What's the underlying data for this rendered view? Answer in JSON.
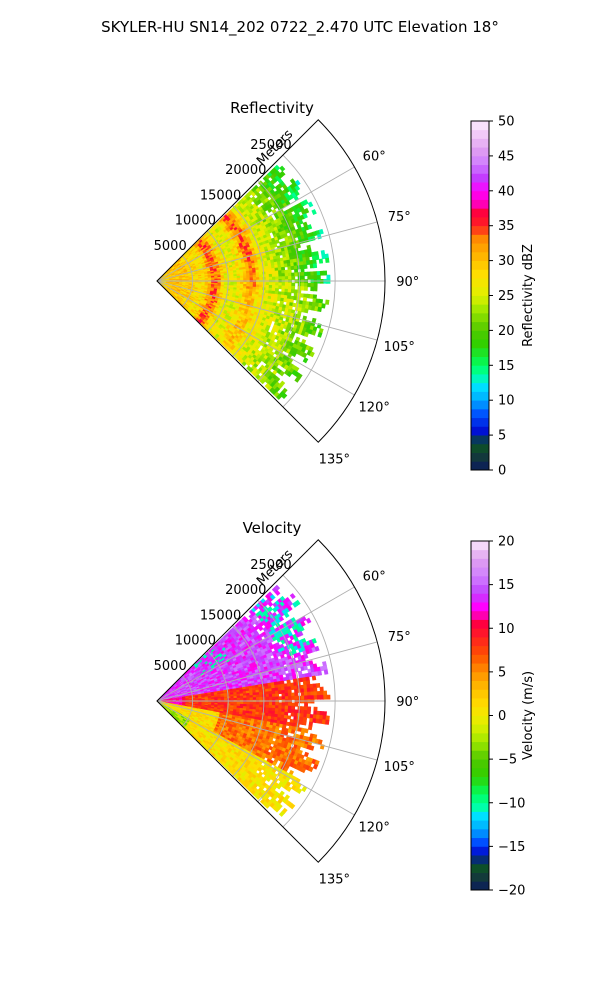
{
  "figure": {
    "title": "SKYLER-HU  SN14_202  0722_2.470 UTC Elevation 18°"
  },
  "chart_data": [
    {
      "type": "heatmap",
      "subtype": "polar-sector (radar PPI)",
      "title": "Reflectivity",
      "range_axis_label": "Meters",
      "range_ticks": [
        5000,
        10000,
        15000,
        20000,
        25000
      ],
      "range_tick_labels": [
        "5000",
        "10000",
        "15000",
        "20000",
        "25000"
      ],
      "range_limit": [
        0,
        32000
      ],
      "azimuth_limit": [
        45,
        135
      ],
      "azimuth_ticks": [
        60,
        75,
        90,
        105,
        120,
        135
      ],
      "azimuth_tick_labels": [
        "60°",
        "75°",
        "90°",
        "105°",
        "120°",
        "135°"
      ],
      "grid": true,
      "data_extent_range": 24000,
      "colorbar": {
        "label": "Reflectivity dBZ",
        "range": [
          0,
          50
        ],
        "ticks": [
          0,
          5,
          10,
          15,
          20,
          25,
          30,
          35,
          40,
          45,
          50
        ],
        "tick_labels": [
          "0",
          "5",
          "10",
          "15",
          "20",
          "25",
          "30",
          "35",
          "40",
          "45",
          "50"
        ],
        "stops": [
          [
            0,
            "#0a1a5e"
          ],
          [
            2,
            "#123a3a"
          ],
          [
            4,
            "#0b5a20"
          ],
          [
            5,
            "#0000c8"
          ],
          [
            8,
            "#0050ff"
          ],
          [
            10,
            "#00a8ff"
          ],
          [
            12,
            "#00e0ff"
          ],
          [
            13.5,
            "#00ffaa"
          ],
          [
            15,
            "#00ff60"
          ],
          [
            18,
            "#30d000"
          ],
          [
            20,
            "#50c800"
          ],
          [
            23,
            "#a0e800"
          ],
          [
            25,
            "#e0f000"
          ],
          [
            28,
            "#ffe000"
          ],
          [
            30,
            "#ffc000"
          ],
          [
            33,
            "#ff9000"
          ],
          [
            35,
            "#ff2020"
          ],
          [
            37,
            "#ff0040"
          ],
          [
            38,
            "#ff00b0"
          ],
          [
            40,
            "#ff00ff"
          ],
          [
            42,
            "#c040ff"
          ],
          [
            44,
            "#d080ff"
          ],
          [
            46,
            "#e0a0f0"
          ],
          [
            48,
            "#f0c8f8"
          ],
          [
            50,
            "#fcecfc"
          ]
        ]
      },
      "field_description": [
        {
          "region": "near 0–9 km",
          "approx_dBZ": 28
        },
        {
          "region": "bands at ~8 km and ~13 km",
          "approx_dBZ": 34
        },
        {
          "region": "mid 10–17 km",
          "approx_dBZ": 25
        },
        {
          "region": "far 17–24 km, north",
          "approx_dBZ": 17
        },
        {
          "region": "far 17–24 km, south",
          "approx_dBZ": 22
        }
      ]
    },
    {
      "type": "heatmap",
      "subtype": "polar-sector (radar PPI)",
      "title": "Velocity",
      "range_axis_label": "Meters",
      "range_ticks": [
        5000,
        10000,
        15000,
        20000,
        25000
      ],
      "range_tick_labels": [
        "5000",
        "10000",
        "15000",
        "20000",
        "25000"
      ],
      "range_limit": [
        0,
        32000
      ],
      "azimuth_limit": [
        45,
        135
      ],
      "azimuth_ticks": [
        60,
        75,
        90,
        105,
        120,
        135
      ],
      "azimuth_tick_labels": [
        "60°",
        "75°",
        "90°",
        "105°",
        "120°",
        "135°"
      ],
      "grid": true,
      "data_extent_range": 24000,
      "colorbar": {
        "label": "Velocity (m/s)",
        "range": [
          -20,
          20
        ],
        "ticks": [
          -20,
          -15,
          -10,
          -5,
          0,
          5,
          10,
          15,
          20
        ],
        "tick_labels": [
          "−20",
          "−15",
          "−10",
          "−5",
          "0",
          "5",
          "10",
          "15",
          "20"
        ],
        "stops": [
          [
            -20,
            "#0a1a5e"
          ],
          [
            -18.5,
            "#123a3a"
          ],
          [
            -17,
            "#0b5a20"
          ],
          [
            -16,
            "#0000c8"
          ],
          [
            -14.5,
            "#0050ff"
          ],
          [
            -13,
            "#00a8ff"
          ],
          [
            -11.5,
            "#00e0ff"
          ],
          [
            -10.5,
            "#00ffaa"
          ],
          [
            -9,
            "#00ff60"
          ],
          [
            -7,
            "#30d000"
          ],
          [
            -5,
            "#50c800"
          ],
          [
            -3,
            "#a0e800"
          ],
          [
            -1,
            "#e0f000"
          ],
          [
            1,
            "#ffe000"
          ],
          [
            3,
            "#ffc000"
          ],
          [
            5,
            "#ff9000"
          ],
          [
            7,
            "#ff5000"
          ],
          [
            9,
            "#ff2020"
          ],
          [
            10.5,
            "#ff0040"
          ],
          [
            11.5,
            "#ff00b0"
          ],
          [
            12.5,
            "#ff00ff"
          ],
          [
            14,
            "#c040ff"
          ],
          [
            16,
            "#d080ff"
          ],
          [
            18,
            "#e0a0f0"
          ],
          [
            20,
            "#fcecfc"
          ]
        ]
      },
      "field_description": [
        {
          "region": "north-west sector (az 50–80°)",
          "approx_ms": 14
        },
        {
          "region": "north band, small patches",
          "approx_ms": -12
        },
        {
          "region": "central strip (az 85–100°)",
          "approx_ms": 8
        },
        {
          "region": "south sector (az 100–135°)",
          "approx_ms": 2
        },
        {
          "region": "south near radar",
          "approx_ms": -3
        }
      ]
    }
  ]
}
